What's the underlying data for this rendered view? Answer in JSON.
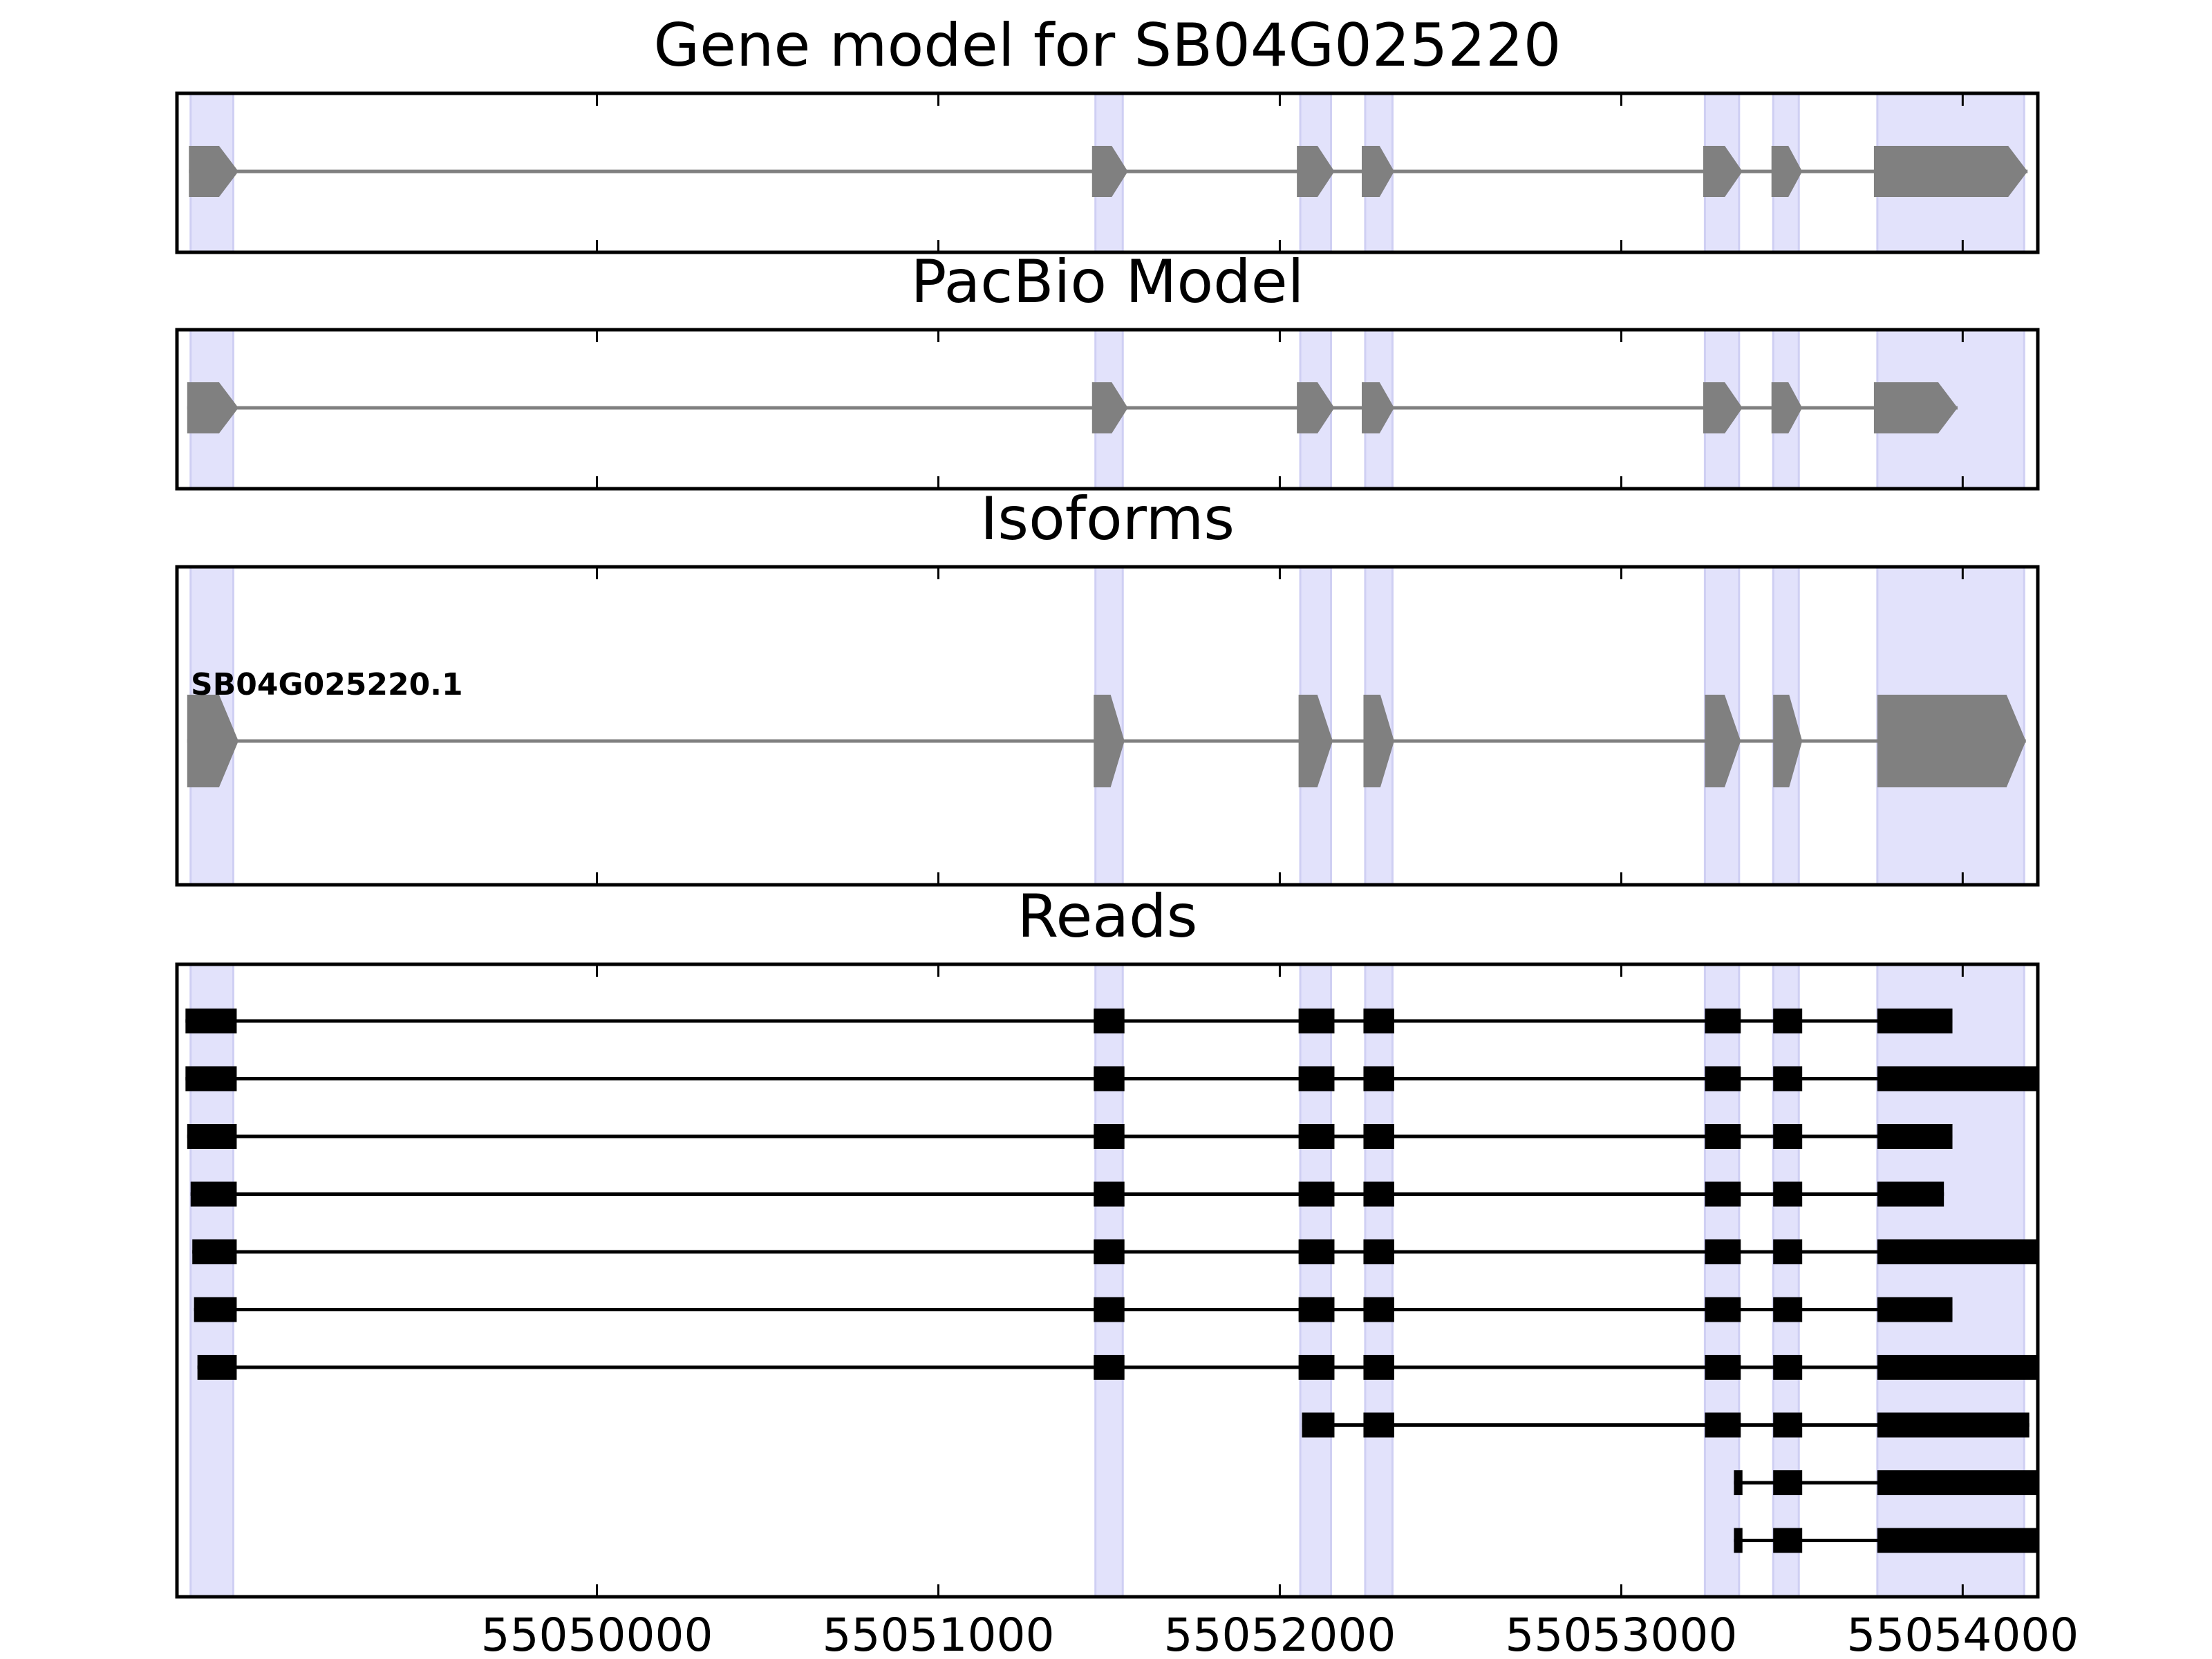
{
  "chart_data": {
    "type": "gene-structure",
    "x_axis": {
      "xlim": [
        55048770,
        55054220
      ],
      "ticks": [
        55050000,
        55051000,
        55052000,
        55053000,
        55054000
      ],
      "tick_labels": [
        "55050000",
        "55051000",
        "55052000",
        "55053000",
        "55054000"
      ]
    },
    "highlight_regions": [
      [
        55048810,
        55048935
      ],
      [
        55051460,
        55051540
      ],
      [
        55052060,
        55052150
      ],
      [
        55052250,
        55052330
      ],
      [
        55053245,
        55053345
      ],
      [
        55053445,
        55053520
      ],
      [
        55053750,
        55054180
      ]
    ],
    "colors": {
      "highlight": "#e2e2fb",
      "highlight_edge": "#cfcff3",
      "exon": "#808080",
      "intron": "#808080",
      "read": "#000000",
      "frame": "#000000"
    },
    "panels": [
      {
        "id": "gene-model",
        "title": "Gene model for SB04G025220",
        "strand": "+",
        "exons": [
          [
            55048805,
            55048950
          ],
          [
            55051450,
            55051555
          ],
          [
            55052050,
            55052160
          ],
          [
            55052240,
            55052335
          ],
          [
            55053240,
            55053355
          ],
          [
            55053440,
            55053530
          ],
          [
            55053740,
            55054190
          ]
        ]
      },
      {
        "id": "pacbio-model",
        "title": "PacBio Model",
        "strand": "+",
        "exons": [
          [
            55048800,
            55048950
          ],
          [
            55051450,
            55051555
          ],
          [
            55052050,
            55052160
          ],
          [
            55052240,
            55052335
          ],
          [
            55053240,
            55053355
          ],
          [
            55053440,
            55053530
          ],
          [
            55053740,
            55053985
          ]
        ]
      },
      {
        "id": "isoforms",
        "title": "Isoforms",
        "isoforms": [
          {
            "label": "SB04G025220.1",
            "strand": "+",
            "exons": [
              [
                55048800,
                55048950
              ],
              [
                55051455,
                55051545
              ],
              [
                55052055,
                55052155
              ],
              [
                55052245,
                55052335
              ],
              [
                55053245,
                55053350
              ],
              [
                55053445,
                55053530
              ],
              [
                55053750,
                55054185
              ]
            ]
          }
        ]
      },
      {
        "id": "reads",
        "title": "Reads",
        "reads": [
          [
            [
              55048795,
              55048945
            ],
            [
              55051455,
              55051545
            ],
            [
              55052055,
              55052160
            ],
            [
              55052245,
              55052335
            ],
            [
              55053245,
              55053350
            ],
            [
              55053445,
              55053530
            ],
            [
              55053750,
              55053970
            ]
          ],
          [
            [
              55048795,
              55048945
            ],
            [
              55051455,
              55051545
            ],
            [
              55052055,
              55052160
            ],
            [
              55052245,
              55052335
            ],
            [
              55053245,
              55053350
            ],
            [
              55053445,
              55053530
            ],
            [
              55053750,
              55054220
            ]
          ],
          [
            [
              55048800,
              55048945
            ],
            [
              55051455,
              55051545
            ],
            [
              55052055,
              55052160
            ],
            [
              55052245,
              55052335
            ],
            [
              55053245,
              55053350
            ],
            [
              55053445,
              55053530
            ],
            [
              55053750,
              55053970
            ]
          ],
          [
            [
              55048810,
              55048945
            ],
            [
              55051455,
              55051545
            ],
            [
              55052055,
              55052160
            ],
            [
              55052245,
              55052335
            ],
            [
              55053245,
              55053350
            ],
            [
              55053445,
              55053530
            ],
            [
              55053750,
              55053945
            ]
          ],
          [
            [
              55048815,
              55048945
            ],
            [
              55051455,
              55051545
            ],
            [
              55052055,
              55052160
            ],
            [
              55052245,
              55052335
            ],
            [
              55053245,
              55053350
            ],
            [
              55053445,
              55053530
            ],
            [
              55053750,
              55054220
            ]
          ],
          [
            [
              55048820,
              55048945
            ],
            [
              55051455,
              55051545
            ],
            [
              55052055,
              55052160
            ],
            [
              55052245,
              55052335
            ],
            [
              55053245,
              55053350
            ],
            [
              55053445,
              55053530
            ],
            [
              55053750,
              55053970
            ]
          ],
          [
            [
              55048830,
              55048945
            ],
            [
              55051455,
              55051545
            ],
            [
              55052055,
              55052160
            ],
            [
              55052245,
              55052335
            ],
            [
              55053245,
              55053350
            ],
            [
              55053445,
              55053530
            ],
            [
              55053750,
              55054220
            ]
          ],
          [
            [
              55052065,
              55052160
            ],
            [
              55052245,
              55052335
            ],
            [
              55053245,
              55053350
            ],
            [
              55053445,
              55053530
            ],
            [
              55053750,
              55054195
            ]
          ],
          [
            [
              55053330,
              55053355
            ],
            [
              55053445,
              55053530
            ],
            [
              55053750,
              55054220
            ]
          ],
          [
            [
              55053330,
              55053355
            ],
            [
              55053445,
              55053530
            ],
            [
              55053750,
              55054220
            ]
          ]
        ]
      }
    ]
  }
}
